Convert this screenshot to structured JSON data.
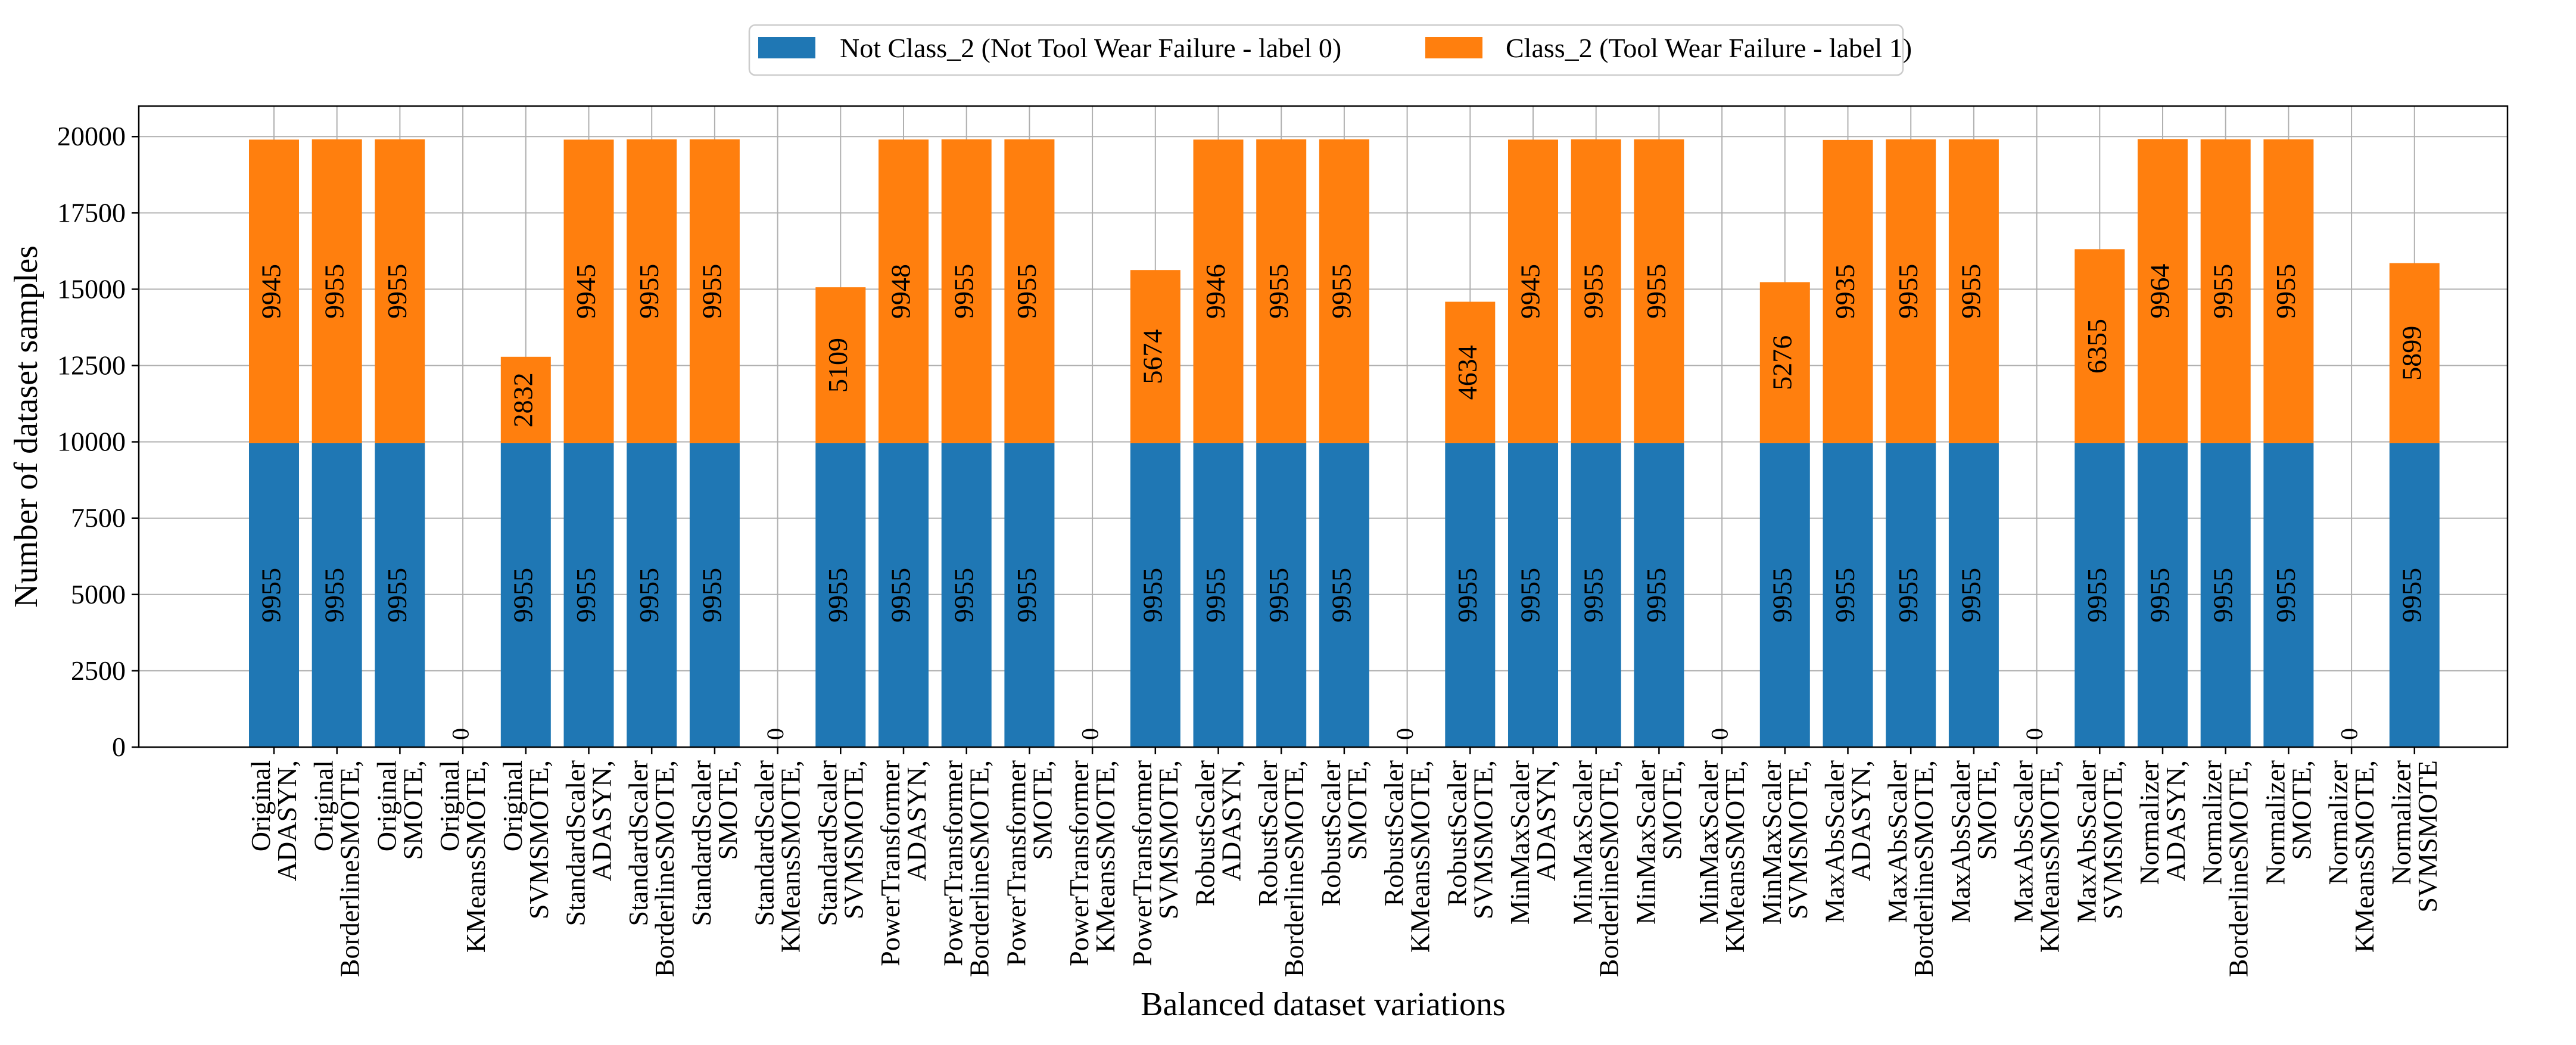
{
  "chart_data": {
    "type": "bar",
    "stacked": true,
    "title": "",
    "xlabel": "Balanced dataset variations",
    "ylabel": "Number of dataset samples",
    "ylim": [
      0,
      21000
    ],
    "yticks": [
      0,
      2500,
      5000,
      7500,
      10000,
      12500,
      15000,
      17500,
      20000
    ],
    "grid": true,
    "legend_position": "top-center",
    "categories": [
      [
        "Original",
        "ADASYN,"
      ],
      [
        "Original",
        "BorderlineSMOTE,"
      ],
      [
        "Original",
        "SMOTE,"
      ],
      [
        "Original",
        "KMeansSMOTE,"
      ],
      [
        "Original",
        "SVMSMOTE,"
      ],
      [
        "StandardScaler",
        "ADASYN,"
      ],
      [
        "StandardScaler",
        "BorderlineSMOTE,"
      ],
      [
        "StandardScaler",
        "SMOTE,"
      ],
      [
        "StandardScaler",
        "KMeansSMOTE,"
      ],
      [
        "StandardScaler",
        "SVMSMOTE,"
      ],
      [
        "PowerTransformer",
        "ADASYN,"
      ],
      [
        "PowerTransformer",
        "BorderlineSMOTE,"
      ],
      [
        "PowerTransformer",
        "SMOTE,"
      ],
      [
        "PowerTransformer",
        "KMeansSMOTE,"
      ],
      [
        "PowerTransformer",
        "SVMSMOTE,"
      ],
      [
        "RobustScaler",
        "ADASYN,"
      ],
      [
        "RobustScaler",
        "BorderlineSMOTE,"
      ],
      [
        "RobustScaler",
        "SMOTE,"
      ],
      [
        "RobustScaler",
        "KMeansSMOTE,"
      ],
      [
        "RobustScaler",
        "SVMSMOTE,"
      ],
      [
        "MinMaxScaler",
        "ADASYN,"
      ],
      [
        "MinMaxScaler",
        "BorderlineSMOTE,"
      ],
      [
        "MinMaxScaler",
        "SMOTE,"
      ],
      [
        "MinMaxScaler",
        "KMeansSMOTE,"
      ],
      [
        "MinMaxScaler",
        "SVMSMOTE,"
      ],
      [
        "MaxAbsScaler",
        "ADASYN,"
      ],
      [
        "MaxAbsScaler",
        "BorderlineSMOTE,"
      ],
      [
        "MaxAbsScaler",
        "SMOTE,"
      ],
      [
        "MaxAbsScaler",
        "KMeansSMOTE,"
      ],
      [
        "MaxAbsScaler",
        "SVMSMOTE,"
      ],
      [
        "Normalizer",
        "ADASYN,"
      ],
      [
        "Normalizer",
        "BorderlineSMOTE,"
      ],
      [
        "Normalizer",
        "SMOTE,"
      ],
      [
        "Normalizer",
        "KMeansSMOTE,"
      ],
      [
        "Normalizer",
        "SVMSMOTE"
      ]
    ],
    "series": [
      {
        "name": "Not Class_2 (Not Tool Wear Failure - label 0)",
        "color": "#1f77b4",
        "values": [
          9955,
          9955,
          9955,
          0,
          9955,
          9955,
          9955,
          9955,
          0,
          9955,
          9955,
          9955,
          9955,
          0,
          9955,
          9955,
          9955,
          9955,
          0,
          9955,
          9955,
          9955,
          9955,
          0,
          9955,
          9955,
          9955,
          9955,
          0,
          9955,
          9955,
          9955,
          9955,
          0,
          9955
        ]
      },
      {
        "name": "Class_2 (Tool Wear Failure - label 1)",
        "color": "#ff7f0e",
        "values": [
          9945,
          9955,
          9955,
          0,
          2832,
          9945,
          9955,
          9955,
          0,
          5109,
          9948,
          9955,
          9955,
          0,
          5674,
          9946,
          9955,
          9955,
          0,
          4634,
          9945,
          9955,
          9955,
          0,
          5276,
          9935,
          9955,
          9955,
          0,
          6355,
          9964,
          9955,
          9955,
          0,
          5899
        ]
      }
    ]
  }
}
